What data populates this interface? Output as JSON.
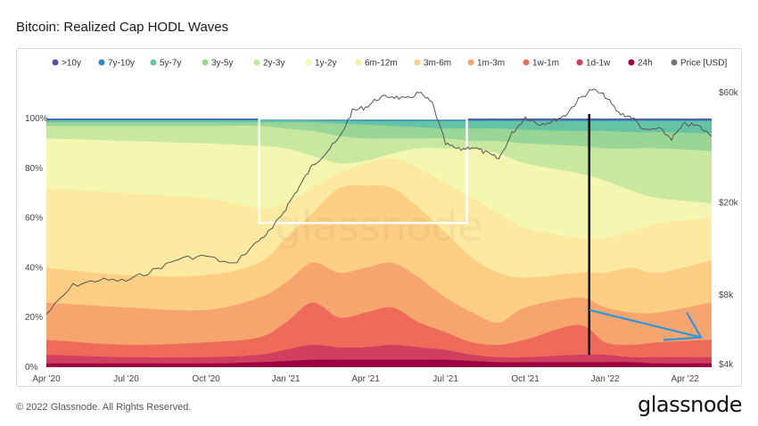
{
  "title": "Bitcoin: Realized Cap HODL Waves",
  "footer": "© 2022 Glassnode. All Rights Reserved.",
  "brand": "glassnode",
  "watermark": "glassnode",
  "chart_data": {
    "type": "area",
    "stacked": true,
    "x_ticks": [
      "Apr '20",
      "Jul '20",
      "Oct '20",
      "Jan '21",
      "Apr '21",
      "Jul '21",
      "Oct '21",
      "Jan '22",
      "Apr '22"
    ],
    "x_range_months": [
      0,
      25
    ],
    "y_left_ticks": [
      "0%",
      "20%",
      "40%",
      "60%",
      "80%",
      "100%"
    ],
    "y_left_range": [
      0,
      100
    ],
    "y_right_ticks": [
      "$4k",
      "$8k",
      "$20k",
      "$60k"
    ],
    "y_right_scale": "log",
    "y_right_range": [
      4000,
      60000
    ],
    "legend": [
      {
        "label": ">10y",
        "color": "#5e4fa2"
      },
      {
        "label": "7y-10y",
        "color": "#3288bd"
      },
      {
        "label": "5y-7y",
        "color": "#66c2a5"
      },
      {
        "label": "3y-5y",
        "color": "#99d594"
      },
      {
        "label": "2y-3y",
        "color": "#c7e89e"
      },
      {
        "label": "1y-2y",
        "color": "#f4f7b0"
      },
      {
        "label": "6m-12m",
        "color": "#fde9a0"
      },
      {
        "label": "3m-6m",
        "color": "#fdce84"
      },
      {
        "label": "1m-3m",
        "color": "#f7a56e"
      },
      {
        "label": "1w-1m",
        "color": "#ee6b5a"
      },
      {
        "label": "1d-1w",
        "color": "#d13f5f"
      },
      {
        "label": "24h",
        "color": "#9e0142"
      },
      {
        "label": "Price [USD]",
        "color": "#777777"
      }
    ],
    "cumulative_bands": {
      "x_months": [
        0,
        3,
        6,
        8,
        9,
        10,
        11,
        12,
        13,
        14,
        15,
        16,
        17,
        18,
        20,
        21,
        22,
        23,
        25
      ],
      "series": [
        {
          "name": "24h",
          "color": "#9e0142",
          "values": [
            1.5,
            1.5,
            1.5,
            2,
            2.5,
            3,
            3,
            3,
            3,
            3,
            3,
            2.5,
            2,
            2,
            2,
            2,
            2,
            1.5,
            1.5
          ]
        },
        {
          "name": "1d-1w",
          "color": "#d13f5f",
          "values": [
            5,
            4,
            4,
            5,
            7,
            9,
            8,
            8,
            9,
            8,
            7,
            5,
            4,
            4,
            5,
            5,
            4,
            4,
            4
          ]
        },
        {
          "name": "1w-1m",
          "color": "#ee6b5a",
          "values": [
            11,
            9,
            10,
            12,
            18,
            26,
            20,
            22,
            24,
            18,
            14,
            10,
            9,
            11,
            17,
            10,
            9,
            10,
            11
          ]
        },
        {
          "name": "1m-3m",
          "color": "#f7a56e",
          "values": [
            26,
            24,
            23,
            28,
            34,
            42,
            38,
            40,
            42,
            36,
            28,
            22,
            18,
            24,
            28,
            24,
            22,
            22,
            26
          ]
        },
        {
          "name": "3m-6m",
          "color": "#fdce84",
          "values": [
            40,
            37,
            37,
            42,
            52,
            62,
            72,
            73,
            72,
            64,
            54,
            44,
            38,
            36,
            38,
            38,
            40,
            38,
            43
          ]
        },
        {
          "name": "6m-12m",
          "color": "#fde9a0",
          "values": [
            72,
            70,
            68,
            64,
            66,
            72,
            78,
            82,
            84,
            80,
            74,
            68,
            62,
            56,
            52,
            52,
            55,
            58,
            60
          ]
        },
        {
          "name": "1y-2y",
          "color": "#f4f7b0",
          "values": [
            92,
            91,
            90,
            89,
            88,
            85,
            82,
            83,
            86,
            88,
            88,
            88,
            86,
            82,
            78,
            75,
            71,
            68,
            66
          ]
        },
        {
          "name": "2y-3y",
          "color": "#c7e89e",
          "values": [
            97,
            97,
            97,
            97,
            96,
            95,
            93,
            92,
            92,
            92,
            92,
            91,
            91,
            90,
            89,
            88,
            88,
            88,
            87
          ]
        },
        {
          "name": "3y-5y",
          "color": "#99d594",
          "values": [
            98.5,
            98.5,
            98.5,
            98.5,
            98.5,
            98.5,
            98,
            97.5,
            97,
            96.5,
            96,
            96,
            96,
            95.5,
            95,
            95,
            94.5,
            94.5,
            94
          ]
        },
        {
          "name": "5y-7y",
          "color": "#66c2a5",
          "values": [
            99.3,
            99.3,
            99.3,
            99.3,
            99.3,
            99.2,
            99.1,
            99,
            99,
            99,
            99,
            99,
            99,
            99,
            99,
            99,
            99,
            99,
            99
          ]
        },
        {
          "name": "7y-10y",
          "color": "#3288bd",
          "values": [
            99.7,
            99.7,
            99.7,
            99.7,
            99.7,
            99.6,
            99.6,
            99.6,
            99.6,
            99.6,
            99.6,
            99.6,
            99.6,
            99.6,
            99.6,
            99.6,
            99.6,
            99.6,
            99.6
          ]
        },
        {
          "name": ">10y",
          "color": "#5e4fa2",
          "values": [
            100,
            100,
            100,
            100,
            100,
            100,
            100,
            100,
            100,
            100,
            100,
            100,
            100,
            100,
            100,
            100,
            100,
            100,
            100
          ]
        }
      ]
    },
    "price_series": {
      "x_months": [
        0,
        1,
        2,
        3,
        4,
        5,
        6,
        7,
        8,
        8.5,
        9,
        9.5,
        10,
        10.5,
        11,
        11.5,
        12,
        12.5,
        13,
        13.5,
        14,
        14.5,
        15,
        15.5,
        16,
        16.5,
        17,
        17.5,
        18,
        18.5,
        19,
        19.5,
        20,
        20.5,
        21,
        21.5,
        22,
        22.5,
        23,
        23.5,
        24,
        24.5,
        25
      ],
      "values": [
        6600,
        8800,
        9300,
        9200,
        10200,
        11500,
        11800,
        10800,
        13800,
        15500,
        19000,
        23500,
        29000,
        33000,
        38000,
        50000,
        52000,
        57000,
        58000,
        56000,
        60000,
        54000,
        36000,
        34000,
        35000,
        33000,
        31000,
        40000,
        47000,
        44000,
        45000,
        48000,
        56000,
        62000,
        58000,
        49000,
        47000,
        41000,
        42000,
        38000,
        44000,
        43000,
        39000
      ]
    },
    "annotations": [
      {
        "type": "rectangle",
        "color": "#ffffff",
        "x_months": [
          8,
          15.8
        ],
        "y_percent": [
          58,
          100
        ]
      },
      {
        "type": "vertical_line",
        "color": "#000000",
        "x_months": 20.4
      },
      {
        "type": "arrow",
        "color": "#2b97df",
        "from": [
          20.4,
          23
        ],
        "to": [
          24.6,
          12
        ]
      }
    ]
  }
}
